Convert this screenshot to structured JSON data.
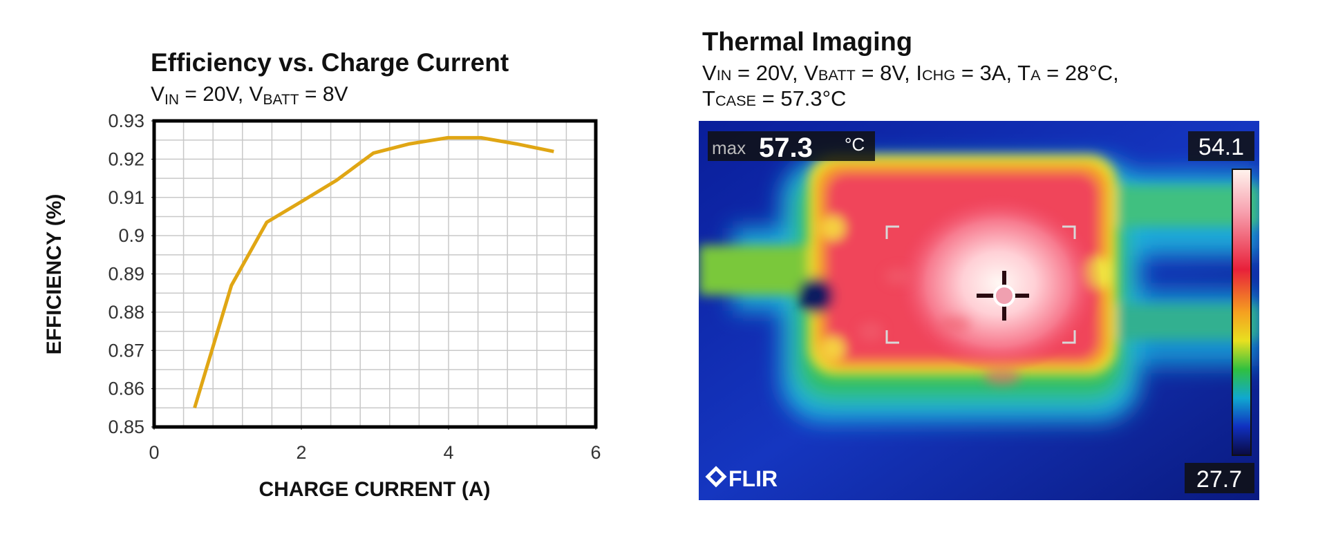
{
  "chart_data": {
    "type": "line",
    "title": "Efficiency vs. Charge Current",
    "subtitle": [
      "V",
      "IN",
      " = 20V, V",
      "BATT",
      " = 8V"
    ],
    "x_label": "CHARGE CURRENT (A)",
    "y_label": "EFFICIENCY (%)",
    "x": [
      0.55,
      1.05,
      1.53,
      2.01,
      2.48,
      2.98,
      3.47,
      3.99,
      4.44,
      4.92,
      5.43
    ],
    "values": [
      0.855,
      0.887,
      0.9035,
      0.909,
      0.9145,
      0.9216,
      0.924,
      0.9256,
      0.9256,
      0.924,
      0.922
    ],
    "color": "#e0a614",
    "xlim": [
      0,
      6
    ],
    "ylim": [
      0.85,
      0.93
    ],
    "xticks": [
      0,
      2,
      4,
      6
    ],
    "yticks": [
      0.85,
      0.86,
      0.87,
      0.88,
      0.89,
      0.9,
      0.91,
      0.92,
      0.93
    ],
    "xgrid": [
      0.4,
      0.8,
      1.2,
      1.6,
      2,
      2.4,
      2.8,
      3.2,
      3.6,
      4,
      4.4,
      4.8,
      5.2,
      5.6
    ],
    "ygrid": [
      0.855,
      0.86,
      0.865,
      0.87,
      0.875,
      0.88,
      0.885,
      0.89,
      0.895,
      0.9,
      0.905,
      0.91,
      0.915,
      0.92,
      0.925
    ],
    "grid": true
  },
  "thermal": {
    "title": "Thermal Imaging",
    "subtitle_line1": [
      "V",
      "IN",
      " = 20V, V",
      "BATT",
      " = 8V, I",
      "CHG",
      " = 3A, T",
      "A",
      " = 28°C,"
    ],
    "subtitle_line2": [
      "T",
      "CASE",
      " = 57.3°C"
    ],
    "max_prefix": "max",
    "max_value": "57.3",
    "max_unit": "°C",
    "scale_top": "54.1",
    "scale_bottom": "27.7",
    "brand": "FLIR"
  }
}
